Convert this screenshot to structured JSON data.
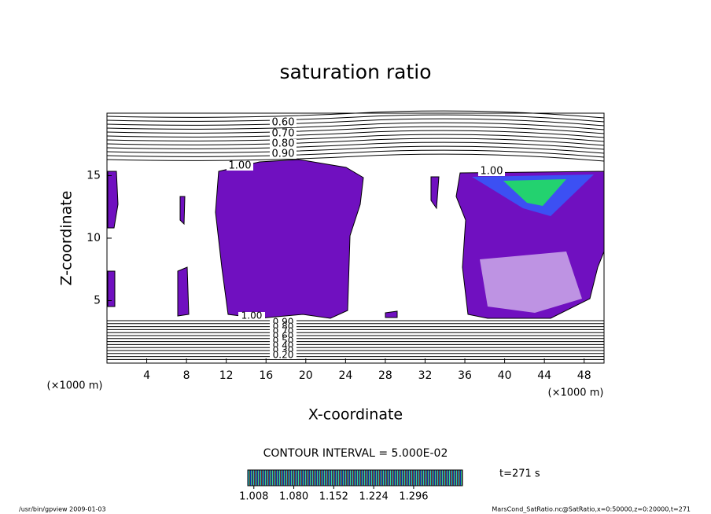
{
  "chart_data": {
    "type": "contour",
    "title": "saturation ratio",
    "x_label": "X-coordinate",
    "y_label": "Z-coordinate",
    "x_unit": "(×1000 m)",
    "y_unit": "(×1000 m)",
    "xlim": [
      0,
      50
    ],
    "ylim": [
      0,
      20
    ],
    "xticks": [
      4,
      8,
      12,
      16,
      20,
      24,
      28,
      32,
      36,
      40,
      44,
      48
    ],
    "yticks": [
      5,
      10,
      15
    ],
    "contour_labels_top": [
      {
        "value": 0.6,
        "label": "0.60"
      },
      {
        "value": 0.7,
        "label": "0.70"
      },
      {
        "value": 0.8,
        "label": "0.80"
      },
      {
        "value": 0.9,
        "label": "0.90"
      },
      {
        "value": 1,
        "label": "1.00"
      },
      {
        "value": 1,
        "label": "1.00"
      }
    ],
    "contour_labels_bottom": [
      {
        "value": 1,
        "label": "1.00"
      },
      {
        "value": 0.9,
        "label": "0.90"
      },
      {
        "value": 0.8,
        "label": "0.80"
      },
      {
        "value": 0.7,
        "label": "0.70"
      },
      {
        "value": 0.6,
        "label": "0.60"
      },
      {
        "value": 0.5,
        "label": "0.50"
      },
      {
        "value": 0.4,
        "label": "0.40"
      },
      {
        "value": 0.3,
        "label": "0.30"
      },
      {
        "value": 0.2,
        "label": "0.20"
      }
    ],
    "contour_interval": "CONTOUR INTERVAL = 5.000E-02",
    "colorbar": {
      "lim": [
        0.997,
        1.384
      ],
      "ticks": [
        1.008,
        {
          "value": 1.08,
          "label": "1.080"
        },
        1.152,
        1.224,
        1.296
      ]
    },
    "time_label": "t=271 s",
    "footer_left": "/usr/bin/gpview   2009-01-03",
    "footer_right": "MarsCond_SatRatio.nc@SatRatio,x=0:50000,z=0:20000,t=271"
  }
}
